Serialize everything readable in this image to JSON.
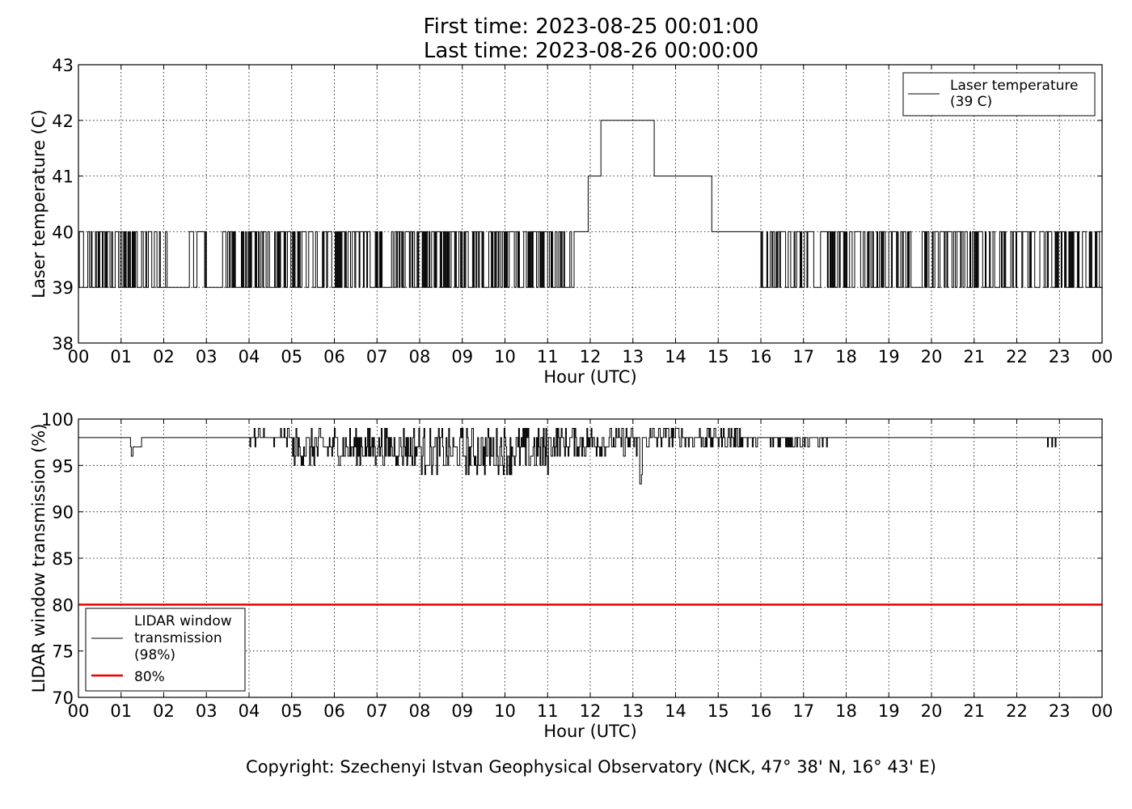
{
  "header": {
    "first_time": "First time: 2023-08-25 00:01:00",
    "last_time": "Last time: 2023-08-26 00:00:00"
  },
  "footer": {
    "copyright": "Copyright: Szechenyi Istvan Geophysical Observatory (NCK, 47° 38' N, 16° 43' E)"
  },
  "chart_data": [
    {
      "type": "line",
      "xlabel": "Hour (UTC)",
      "ylabel": "Laser temperature (C)",
      "xlim": [
        0,
        24
      ],
      "ylim": [
        38,
        43
      ],
      "xticks": [
        "00",
        "01",
        "02",
        "03",
        "04",
        "05",
        "06",
        "07",
        "08",
        "09",
        "10",
        "11",
        "12",
        "13",
        "14",
        "15",
        "16",
        "17",
        "18",
        "19",
        "20",
        "21",
        "22",
        "23",
        "00"
      ],
      "yticks": [
        "38",
        "39",
        "40",
        "41",
        "42",
        "43"
      ],
      "grid": true,
      "legend_position": "top-right",
      "series": [
        {
          "name": "Laser temperature (39 C)",
          "legend_lines": [
            "Laser temperature",
            "(39 C)"
          ],
          "color": "#000000",
          "description": "step series toggling between 39 and 40 C",
          "segments": [
            {
              "from": 0.0,
              "to": 2.1,
              "low": 39,
              "high": 40,
              "mode": "toggle"
            },
            {
              "from": 2.1,
              "to": 2.6,
              "value": 39
            },
            {
              "from": 2.6,
              "to": 3.0,
              "low": 39,
              "high": 40,
              "mode": "toggle_sparse"
            },
            {
              "from": 3.0,
              "to": 3.3,
              "value": 39
            },
            {
              "from": 3.3,
              "to": 11.65,
              "low": 39,
              "high": 40,
              "mode": "toggle"
            },
            {
              "from": 11.65,
              "to": 11.95,
              "value": 40
            },
            {
              "from": 11.95,
              "to": 12.25,
              "value": 41
            },
            {
              "from": 12.25,
              "to": 13.5,
              "value": 42
            },
            {
              "from": 13.5,
              "to": 14.85,
              "value": 41
            },
            {
              "from": 14.85,
              "to": 16.0,
              "value": 40
            },
            {
              "from": 16.0,
              "to": 24.0,
              "low": 39,
              "high": 40,
              "mode": "toggle_with_gaps"
            }
          ]
        }
      ]
    },
    {
      "type": "line",
      "xlabel": "Hour (UTC)",
      "ylabel": "LIDAR window transmission (%)",
      "xlim": [
        0,
        24
      ],
      "ylim": [
        70,
        100
      ],
      "xticks": [
        "00",
        "01",
        "02",
        "03",
        "04",
        "05",
        "06",
        "07",
        "08",
        "09",
        "10",
        "11",
        "12",
        "13",
        "14",
        "15",
        "16",
        "17",
        "18",
        "19",
        "20",
        "21",
        "22",
        "23",
        "00"
      ],
      "yticks": [
        "70",
        "75",
        "80",
        "85",
        "90",
        "95",
        "100"
      ],
      "grid": true,
      "legend_position": "bottom-left",
      "series": [
        {
          "name": "LIDAR window transmission (98%)",
          "legend_lines": [
            "LIDAR window",
            "transmission",
            "(98%)"
          ],
          "color": "#000000",
          "baseline": 98,
          "noisy_ranges": [
            {
              "from": 1.1,
              "to": 1.5,
              "min": 96,
              "max": 98
            },
            {
              "from": 4.0,
              "to": 5.0,
              "min": 97,
              "max": 99
            },
            {
              "from": 5.0,
              "to": 8.0,
              "min": 95,
              "max": 99
            },
            {
              "from": 8.0,
              "to": 11.0,
              "min": 94,
              "max": 99
            },
            {
              "from": 11.0,
              "to": 13.0,
              "min": 96,
              "max": 99
            },
            {
              "from": 13.0,
              "to": 13.3,
              "min": 93,
              "max": 99
            },
            {
              "from": 13.3,
              "to": 15.5,
              "min": 97,
              "max": 99
            },
            {
              "from": 15.5,
              "to": 17.6,
              "min": 97,
              "max": 98
            },
            {
              "from": 22.7,
              "to": 22.9,
              "min": 97,
              "max": 98
            }
          ]
        },
        {
          "name": "80%",
          "legend_lines": [
            "80%"
          ],
          "color": "#ee0000",
          "value": 80
        }
      ]
    }
  ]
}
